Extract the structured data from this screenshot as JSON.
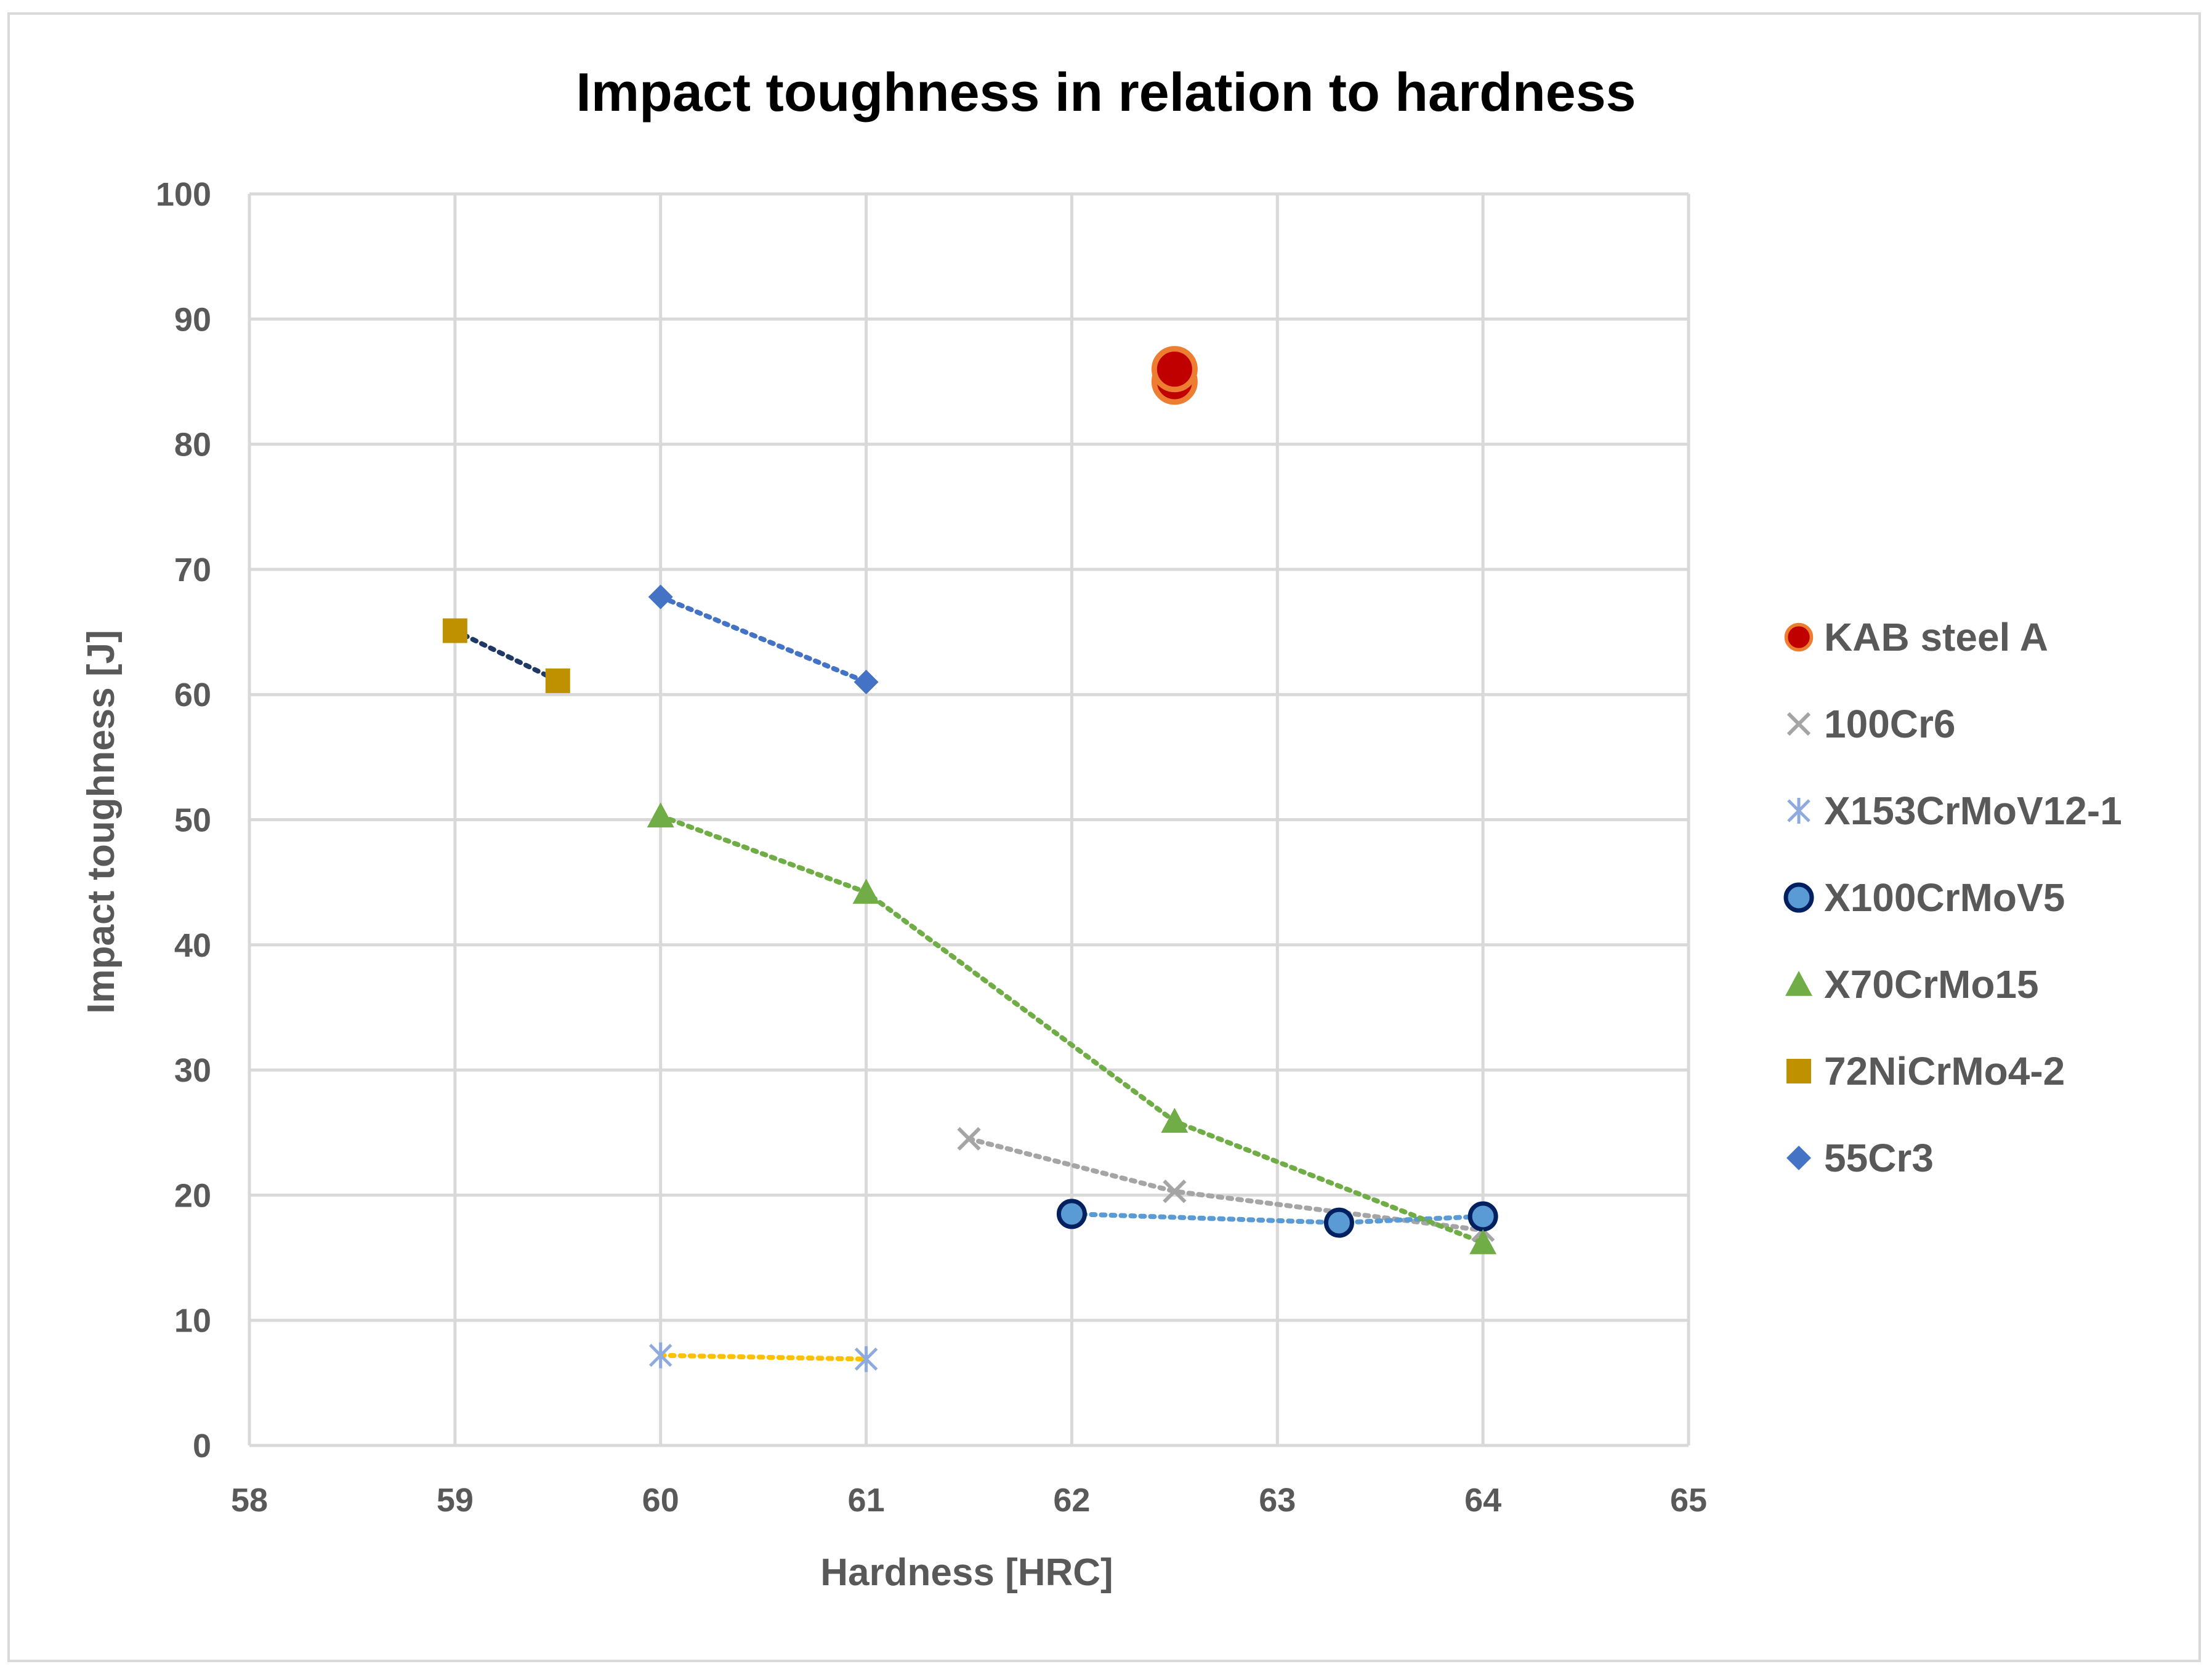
{
  "chart_data": {
    "type": "scatter",
    "title": "Impact toughness in relation to hardness",
    "xlabel": "Hardness [HRC]",
    "ylabel": "Impact toughness [J]",
    "xlim": [
      58,
      65
    ],
    "ylim": [
      0,
      100
    ],
    "xticks": [
      58,
      59,
      60,
      61,
      62,
      63,
      64,
      65
    ],
    "yticks": [
      0,
      10,
      20,
      30,
      40,
      50,
      60,
      70,
      80,
      90,
      100
    ],
    "grid": true,
    "legend_position": "right",
    "series": [
      {
        "name": "KAB steel A",
        "marker": "circle-red",
        "color": "#c00000",
        "edge": "#ed7d31",
        "x": [
          62.5,
          62.5
        ],
        "y": [
          85,
          86
        ],
        "trendline": false
      },
      {
        "name": "100Cr6",
        "marker": "x",
        "color": "#a5a5a5",
        "x": [
          61.5,
          62.5,
          64
        ],
        "y": [
          24.5,
          20.3,
          17.2
        ],
        "trendline": true,
        "trend_color": "#a5a5a5"
      },
      {
        "name": "X153CrMoV12-1",
        "marker": "asterisk",
        "color": "#8faadc",
        "x": [
          60,
          61
        ],
        "y": [
          7.2,
          6.9
        ],
        "trendline": true,
        "trend_color": "#ffc000"
      },
      {
        "name": "X100CrMoV5",
        "marker": "circle-blue",
        "color": "#5b9bd5",
        "edge": "#002060",
        "x": [
          62,
          63.3,
          64
        ],
        "y": [
          18.5,
          17.8,
          18.3
        ],
        "trendline": true,
        "trend_color": "#5b9bd5"
      },
      {
        "name": "X70CrMo15",
        "marker": "triangle",
        "color": "#70ad47",
        "x": [
          60,
          61,
          62.5,
          64
        ],
        "y": [
          50.3,
          44.2,
          25.9,
          16.2
        ],
        "trendline": true,
        "trend_color": "#70ad47"
      },
      {
        "name": "72NiCrMo4-2",
        "marker": "square",
        "color": "#bf9000",
        "x": [
          59,
          59.5
        ],
        "y": [
          65.1,
          61.1
        ],
        "trendline": true,
        "trend_color": "#1f3864"
      },
      {
        "name": "55Cr3",
        "marker": "diamond",
        "color": "#4472c4",
        "x": [
          60,
          61
        ],
        "y": [
          67.8,
          61
        ],
        "trendline": true,
        "trend_color": "#4472c4"
      }
    ]
  }
}
